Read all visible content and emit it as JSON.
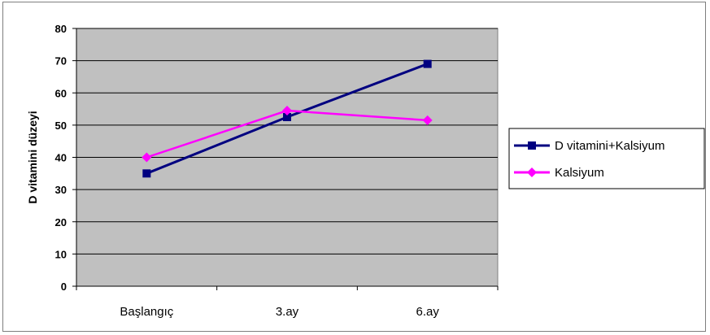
{
  "chart_data": {
    "type": "line",
    "title": "",
    "xlabel": "",
    "ylabel": "D vitamini düzeyi",
    "categories": [
      "Başlangıç",
      "3.ay",
      "6.ay"
    ],
    "ylim": [
      0,
      80
    ],
    "yticks": [
      0,
      10,
      20,
      30,
      40,
      50,
      60,
      70,
      80
    ],
    "grid": true,
    "legend_position": "right",
    "plot_background": "#c0c0c0",
    "series": [
      {
        "name": "D vitamini+Kalsiyum",
        "values": [
          35,
          52.5,
          69
        ],
        "color": "#000080",
        "marker": "square"
      },
      {
        "name": "Kalsiyum",
        "values": [
          40,
          54.5,
          51.5
        ],
        "color": "#ff00ff",
        "marker": "diamond"
      }
    ]
  }
}
